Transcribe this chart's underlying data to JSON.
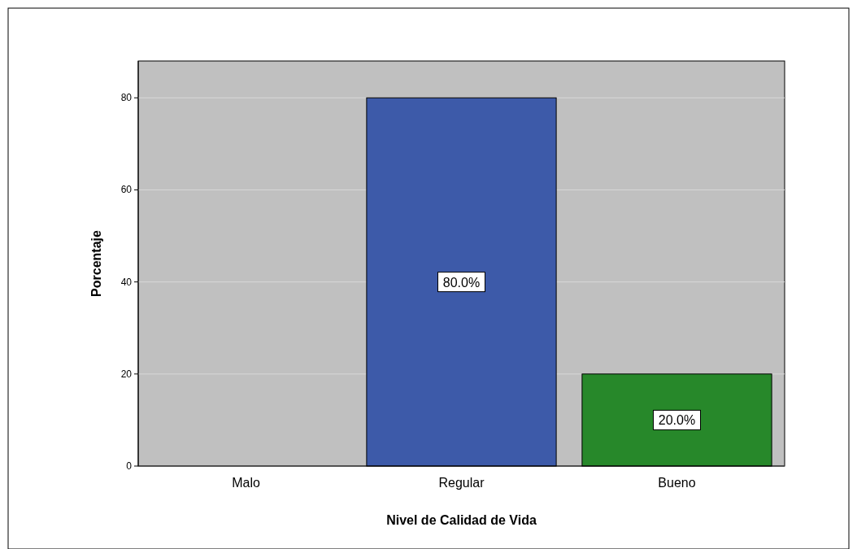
{
  "chart_data": {
    "type": "bar",
    "xlabel": "Nivel de Calidad de Vida",
    "ylabel": "Porcentaje",
    "categories": [
      "Malo",
      "Regular",
      "Bueno"
    ],
    "values": [
      0,
      80,
      20
    ],
    "colors": [
      "#3d5aa9",
      "#3d5aa9",
      "#27882a"
    ],
    "value_labels": [
      null,
      "80.0%",
      "20.0%"
    ],
    "ylim": [
      0,
      88
    ],
    "yticks": [
      0,
      20,
      40,
      60,
      80
    ],
    "grid": "y"
  }
}
